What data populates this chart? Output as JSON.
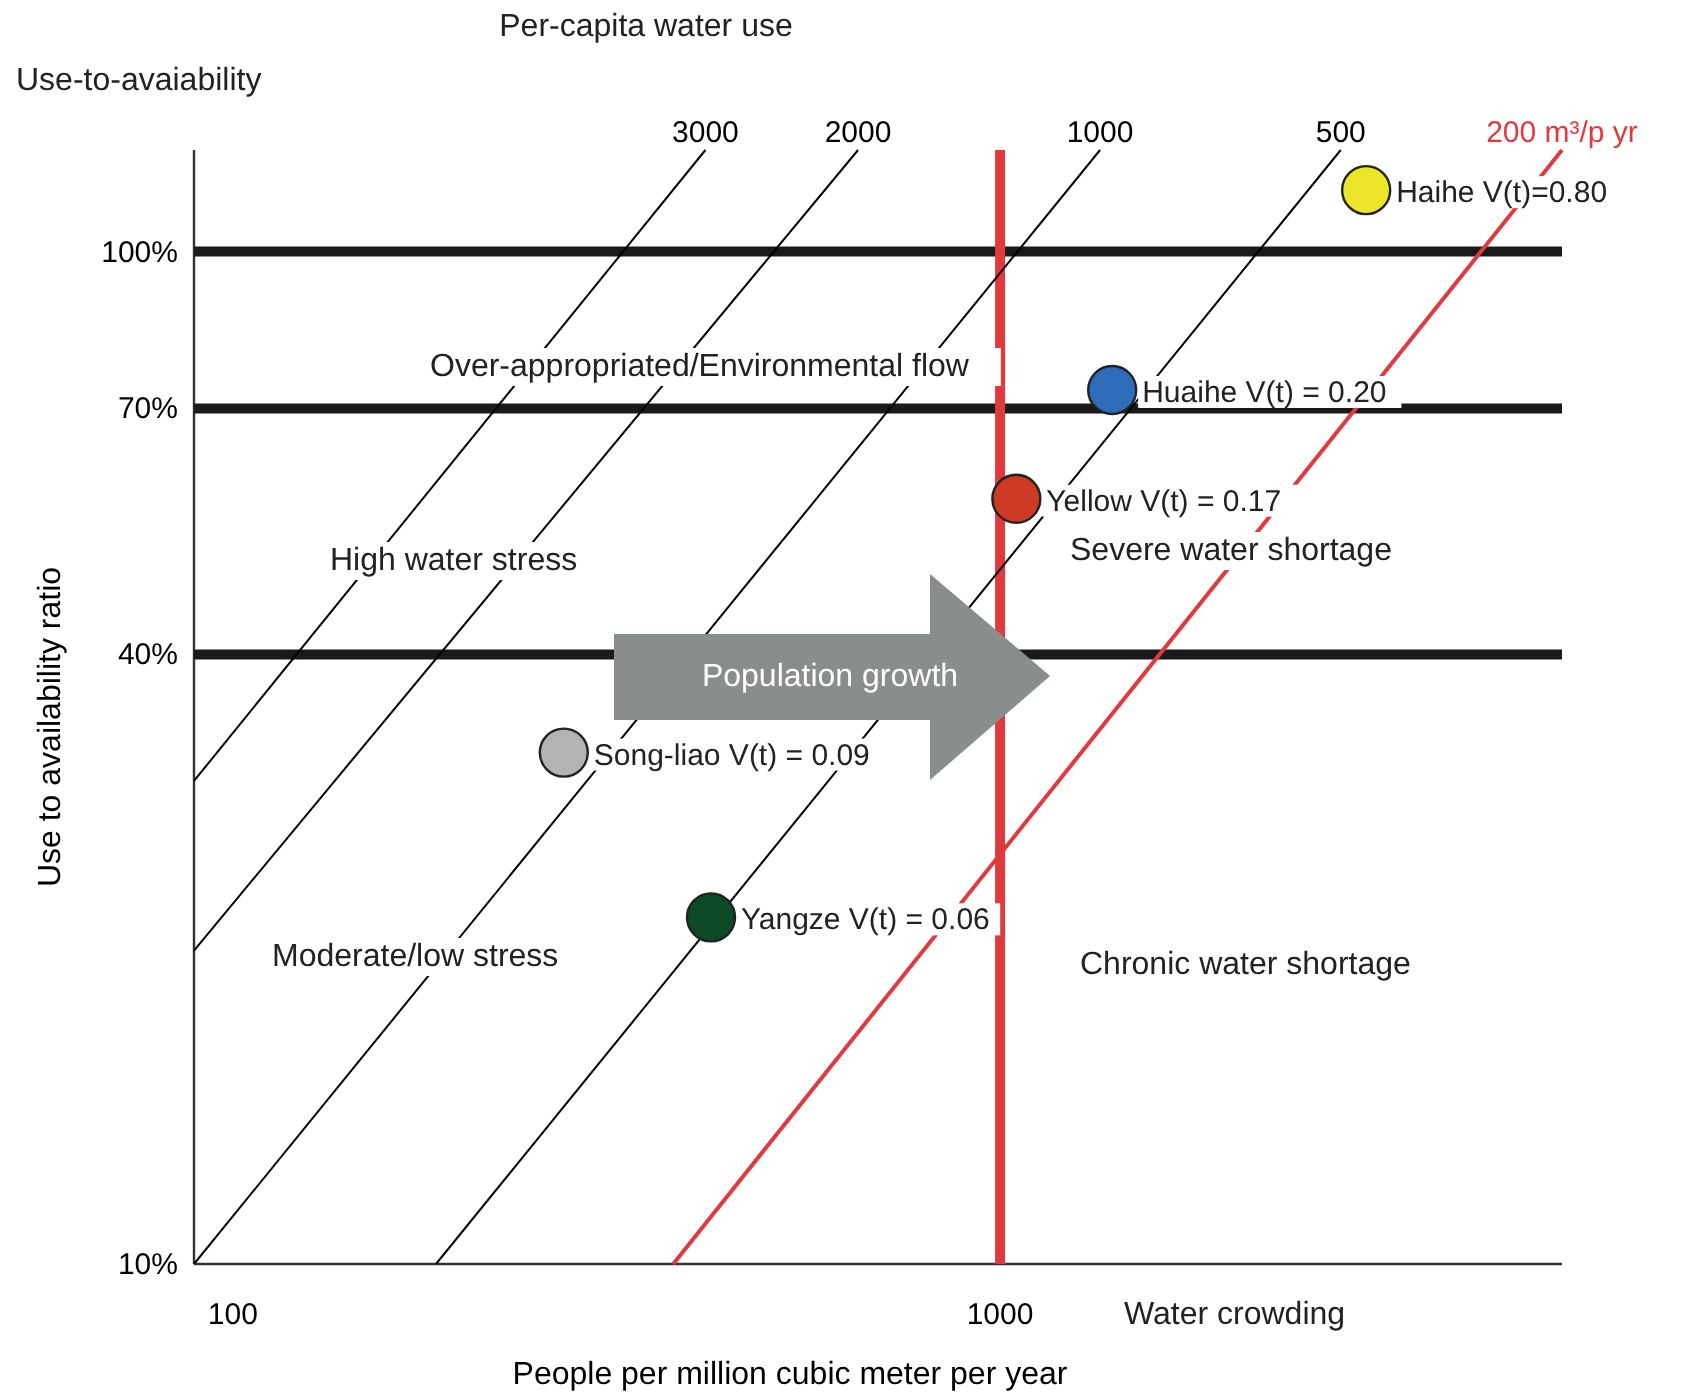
{
  "chart_data": {
    "type": "scatter",
    "xlabel": "People per million cubic meter per year",
    "ylabel": "Use to availability ratio",
    "log": "xy",
    "grid": false,
    "legend": false,
    "xlim": [
      89,
      5400
    ],
    "xticks": [
      100,
      1000
    ],
    "ylim": [
      10,
      126
    ],
    "yticks": [
      {
        "value": 10,
        "label": "10%"
      },
      {
        "value": 40,
        "label": "40%"
      },
      {
        "value": 70,
        "label": "70%"
      },
      {
        "value": 100,
        "label": "100%"
      }
    ],
    "series": [
      {
        "name": "3000",
        "type": "line",
        "color": "#000000",
        "x": [
          89,
          413
        ],
        "values": [
          30,
          126
        ]
      },
      {
        "name": "2000",
        "type": "line",
        "color": "#000000",
        "x": [
          89,
          653
        ],
        "values": [
          20.4,
          126
        ]
      },
      {
        "name": "1000",
        "type": "line",
        "color": "#000000",
        "x": [
          89,
          1350
        ],
        "values": [
          10,
          126
        ]
      },
      {
        "name": "500",
        "type": "line",
        "color": "#000000",
        "x": [
          184,
          2780
        ],
        "values": [
          10,
          126
        ]
      },
      {
        "name": "200 m³/p yr",
        "type": "line",
        "color": "#e0393e",
        "x": [
          375,
          5400
        ],
        "values": [
          10,
          126
        ]
      },
      {
        "name": "Haihe V(t)=0.80",
        "type": "scatter",
        "marker": "circle",
        "color": "#ece62a",
        "x": [
          3000
        ],
        "values": [
          115
        ]
      },
      {
        "name": "Huaihe V(t) = 0.20",
        "type": "scatter",
        "marker": "circle",
        "color": "#2e6bb8",
        "x": [
          1400
        ],
        "values": [
          73
        ]
      },
      {
        "name": "Yellow V(t) = 0.17",
        "type": "scatter",
        "marker": "circle",
        "color": "#cc3a24",
        "x": [
          1050
        ],
        "values": [
          57
        ]
      },
      {
        "name": "Song-liao V(t) = 0.09",
        "type": "scatter",
        "marker": "circle",
        "color": "#b3b3b3",
        "x": [
          270
        ],
        "values": [
          32
        ]
      },
      {
        "name": "Yangze V(t) = 0.06",
        "type": "scatter",
        "marker": "circle",
        "color": "#0b4a24",
        "x": [
          420
        ],
        "values": [
          22
        ]
      }
    ],
    "ref_lines": [
      {
        "axis": "y",
        "value": 100,
        "color": "#1a1a1a"
      },
      {
        "axis": "y",
        "value": 70,
        "color": "#1a1a1a"
      },
      {
        "axis": "y",
        "value": 40,
        "color": "#1a1a1a"
      },
      {
        "axis": "x",
        "value": 1000,
        "color": "#e0393e"
      }
    ],
    "annotations": [
      "Use-to-avaiability",
      "Per-capita water use",
      "Over-appropriated/Environmental flow",
      "High water stress",
      "Moderate/low stress",
      "Severe water shortage",
      "Chronic water shortage",
      "Water crowding",
      "Population growth"
    ]
  }
}
